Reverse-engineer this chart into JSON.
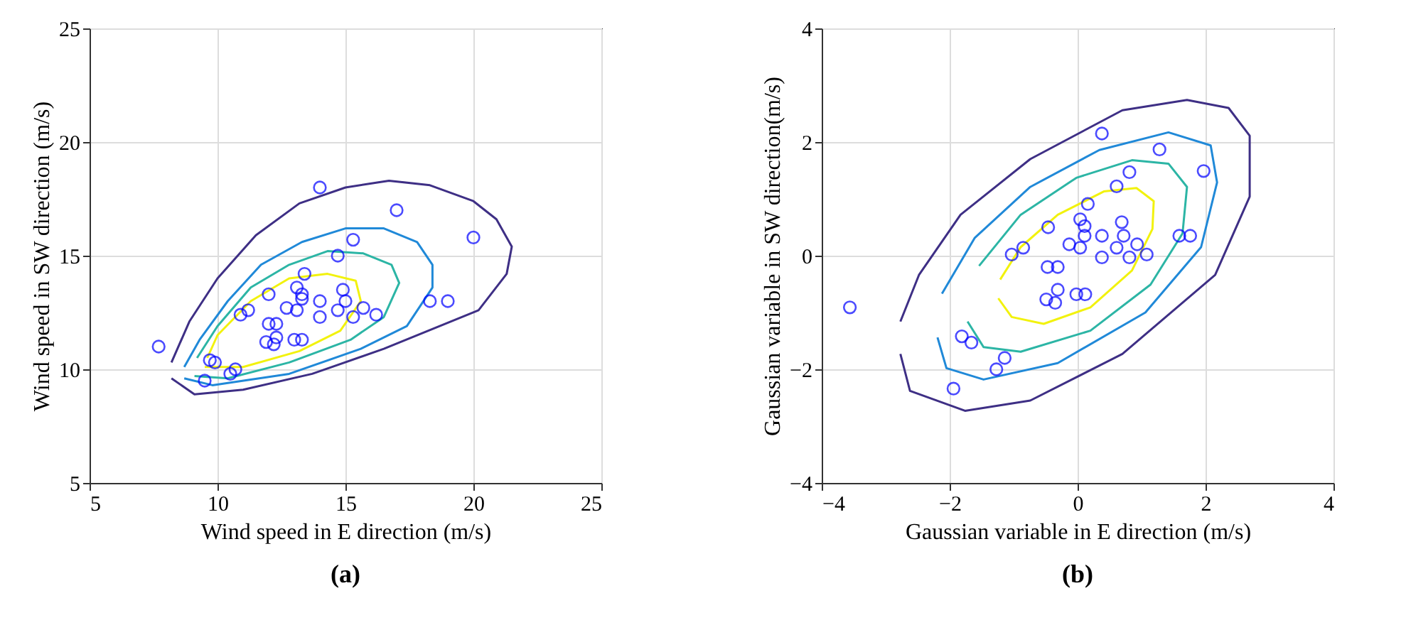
{
  "chart_data": [
    {
      "type": "scatter",
      "title": "(a)",
      "xlabel": "Wind speed in E direction (m/s)",
      "ylabel": "Wind speed in SW direction (m/s)",
      "xlim": [
        5,
        25
      ],
      "ylim": [
        5,
        25
      ],
      "xticks": [
        5,
        10,
        15,
        20,
        25
      ],
      "yticks": [
        5,
        10,
        15,
        20,
        25
      ],
      "grid": true,
      "legend": false,
      "series": [
        {
          "type": "line",
          "color": "#3e2f85",
          "line_style": "solid",
          "marker": "none",
          "x": [
            8.2,
            9.1,
            11.0,
            13.7,
            16.5,
            20.2,
            21.3,
            21.5,
            20.9,
            20.0,
            18.3,
            16.7,
            15.0,
            13.2,
            11.5,
            10.0,
            8.9,
            8.2
          ],
          "values": [
            9.6,
            8.9,
            9.1,
            9.8,
            10.9,
            12.6,
            14.2,
            15.4,
            16.6,
            17.4,
            18.1,
            18.3,
            18.0,
            17.3,
            15.9,
            14.0,
            12.1,
            10.3
          ]
        },
        {
          "type": "line",
          "color": "#2089d8",
          "line_style": "solid",
          "marker": "none",
          "x": [
            8.7,
            9.8,
            12.8,
            15.6,
            17.4,
            18.4,
            18.4,
            17.8,
            16.5,
            15.0,
            13.3,
            11.7,
            10.4,
            9.3,
            8.7
          ],
          "values": [
            9.6,
            9.3,
            9.8,
            10.9,
            11.9,
            13.6,
            14.6,
            15.6,
            16.2,
            16.2,
            15.6,
            14.6,
            13.0,
            11.3,
            10.1
          ]
        },
        {
          "type": "line",
          "color": "#2cb5a5",
          "line_style": "solid",
          "marker": "none",
          "x": [
            9.1,
            10.4,
            12.8,
            15.2,
            16.5,
            17.1,
            16.8,
            15.7,
            14.3,
            12.8,
            11.3,
            10.0,
            9.2
          ],
          "values": [
            9.7,
            9.6,
            10.3,
            11.3,
            12.3,
            13.8,
            14.6,
            15.1,
            15.2,
            14.6,
            13.6,
            11.9,
            10.5
          ]
        },
        {
          "type": "line",
          "color": "#f2f20d",
          "line_style": "solid",
          "marker": "none",
          "x": [
            9.5,
            11.0,
            13.2,
            14.8,
            15.6,
            15.4,
            14.3,
            12.8,
            11.3,
            10.0,
            9.6
          ],
          "values": [
            10.1,
            10.1,
            10.8,
            11.7,
            13.0,
            13.9,
            14.2,
            14.0,
            13.0,
            11.5,
            10.5
          ]
        },
        {
          "color": "#0000ff",
          "marker": "circle",
          "x": [
            14.0,
            17.0,
            20.0,
            15.3,
            14.7,
            13.4,
            13.1,
            13.3,
            13.3,
            12.0,
            14.0,
            14.9,
            15.0,
            12.7,
            13.1,
            14.7,
            14.0,
            15.3,
            15.7,
            16.2,
            18.3,
            19.0,
            11.2,
            10.9,
            12.0,
            12.3,
            12.3,
            11.9,
            12.2,
            13.0,
            13.3,
            7.7,
            9.7,
            9.9,
            10.7,
            10.5,
            9.5
          ],
          "values": [
            18.0,
            17.0,
            15.8,
            15.7,
            15.0,
            14.2,
            13.6,
            13.3,
            13.1,
            13.3,
            13.0,
            13.5,
            13.0,
            12.7,
            12.6,
            12.6,
            12.3,
            12.3,
            12.7,
            12.4,
            13.0,
            13.0,
            12.6,
            12.4,
            12.0,
            12.0,
            11.4,
            11.2,
            11.1,
            11.3,
            11.3,
            11.0,
            10.4,
            10.3,
            10.0,
            9.8,
            9.5
          ]
        }
      ]
    },
    {
      "type": "scatter",
      "title": "(b)",
      "xlabel": "Gaussian  variable  in E direction (m/s)",
      "ylabel": "Gaussian variable in SW direction(m/s)",
      "xlim": [
        -4,
        4
      ],
      "ylim": [
        -4,
        4
      ],
      "xticks": [
        {
          "value": -4,
          "label": "−4"
        },
        {
          "value": -2,
          "label": "−2"
        },
        0,
        2,
        4
      ],
      "yticks": [
        {
          "value": -4,
          "label": "−4"
        },
        {
          "value": -2,
          "label": "−2"
        },
        0,
        2,
        4
      ],
      "grid": true,
      "legend": false,
      "series": [
        {
          "type": "line",
          "color": "#3e2f85",
          "line_style": "solid",
          "marker": "none",
          "x": [
            -2.77,
            -2.62,
            -1.76,
            -0.74,
            0.7,
            2.15,
            2.69,
            2.69,
            2.36,
            1.71,
            0.7,
            -0.74,
            -1.83,
            -2.48,
            -2.77
          ],
          "values": [
            -1.73,
            -2.38,
            -2.73,
            -2.55,
            -1.73,
            -0.34,
            1.04,
            2.11,
            2.6,
            2.74,
            2.56,
            1.7,
            0.72,
            -0.34,
            -1.16
          ]
        },
        {
          "type": "line",
          "color": "#2089d8",
          "line_style": "solid",
          "marker": "none",
          "x": [
            -2.19,
            -2.05,
            -1.47,
            -0.31,
            1.06,
            1.93,
            2.18,
            2.08,
            1.42,
            0.34,
            -0.74,
            -1.61,
            -2.12
          ],
          "values": [
            -1.44,
            -1.98,
            -2.18,
            -1.89,
            -1.0,
            0.15,
            1.29,
            1.94,
            2.17,
            1.86,
            1.21,
            0.31,
            -0.67
          ]
        },
        {
          "type": "line",
          "color": "#2cb5a5",
          "line_style": "solid",
          "marker": "none",
          "x": [
            -1.72,
            -1.47,
            -0.89,
            0.2,
            1.14,
            1.64,
            1.71,
            1.42,
            0.85,
            -0.02,
            -0.89,
            -1.54
          ],
          "values": [
            -1.16,
            -1.61,
            -1.69,
            -1.32,
            -0.51,
            0.39,
            1.21,
            1.62,
            1.68,
            1.37,
            0.72,
            -0.18
          ]
        },
        {
          "type": "line",
          "color": "#f2f20d",
          "line_style": "solid",
          "marker": "none",
          "x": [
            -1.24,
            -1.03,
            -0.53,
            0.2,
            0.85,
            1.17,
            1.19,
            0.92,
            0.41,
            -0.31,
            -0.89,
            -1.21
          ],
          "values": [
            -0.75,
            -1.08,
            -1.2,
            -0.91,
            -0.26,
            0.47,
            0.96,
            1.19,
            1.13,
            0.72,
            0.15,
            -0.42
          ]
        },
        {
          "color": "#0000ff",
          "marker": "circle",
          "x": [
            -3.56,
            0.38,
            1.28,
            1.97,
            0.81,
            0.61,
            0.16,
            0.04,
            0.11,
            0.11,
            -0.46,
            0.69,
            0.72,
            0.38,
            -0.13,
            0.04,
            0.61,
            0.93,
            1.08,
            0.81,
            0.38,
            1.59,
            1.76,
            -1.03,
            -0.85,
            -0.47,
            -0.31,
            -0.31,
            -0.49,
            -0.35,
            -0.02,
            0.12,
            -1.81,
            -1.66,
            -1.14,
            -1.27,
            -1.94
          ],
          "values": [
            -0.91,
            2.15,
            1.87,
            1.49,
            1.47,
            1.22,
            0.91,
            0.64,
            0.52,
            0.35,
            0.5,
            0.59,
            0.35,
            0.35,
            0.2,
            0.14,
            0.14,
            0.2,
            0.02,
            -0.03,
            -0.03,
            0.35,
            0.35,
            0.02,
            0.14,
            -0.2,
            -0.2,
            -0.6,
            -0.77,
            -0.83,
            -0.68,
            -0.68,
            -1.42,
            -1.53,
            -1.8,
            -2.0,
            -2.34
          ]
        }
      ]
    }
  ]
}
